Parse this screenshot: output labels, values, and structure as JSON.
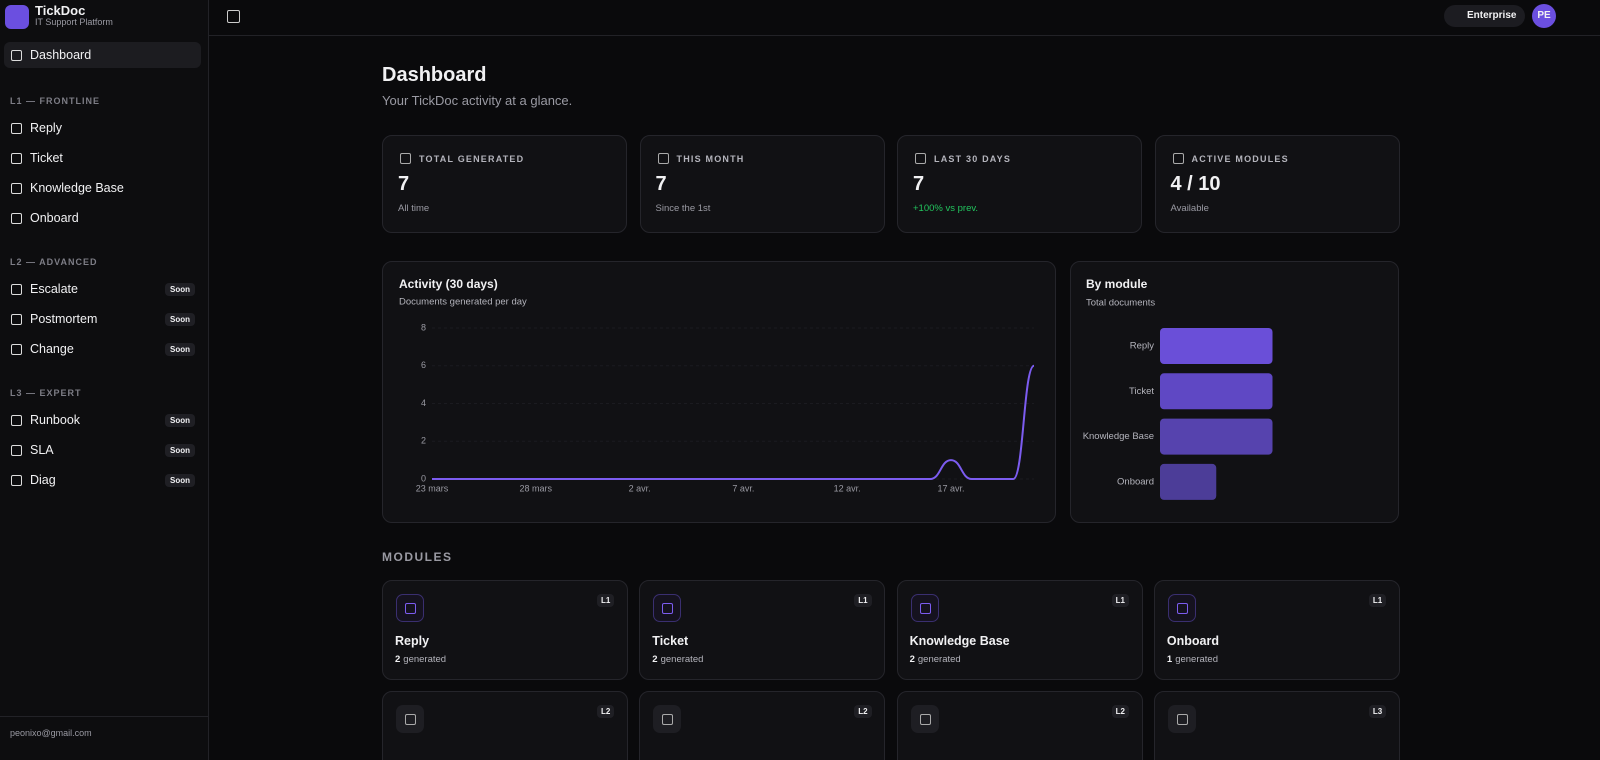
{
  "brand": {
    "name": "TickDoc",
    "tagline": "IT Support Platform"
  },
  "sidebar": {
    "home": "Dashboard",
    "sections": [
      {
        "title": "L1 — FRONTLINE",
        "items": [
          {
            "label": "Reply"
          },
          {
            "label": "Ticket"
          },
          {
            "label": "Knowledge Base"
          },
          {
            "label": "Onboard"
          }
        ]
      },
      {
        "title": "L2 — ADVANCED",
        "items": [
          {
            "label": "Escalate",
            "badge": "Soon"
          },
          {
            "label": "Postmortem",
            "badge": "Soon"
          },
          {
            "label": "Change",
            "badge": "Soon"
          }
        ]
      },
      {
        "title": "L3 — EXPERT",
        "items": [
          {
            "label": "Runbook",
            "badge": "Soon"
          },
          {
            "label": "SLA",
            "badge": "Soon"
          },
          {
            "label": "Diag",
            "badge": "Soon"
          }
        ]
      }
    ],
    "user_email": "peonixo@gmail.com"
  },
  "topbar": {
    "plan": "Enterprise",
    "avatar": "PE"
  },
  "header": {
    "title": "Dashboard",
    "subtitle": "Your TickDoc activity at a glance."
  },
  "stats": [
    {
      "label": "TOTAL GENERATED",
      "value": 7,
      "note": "All time"
    },
    {
      "label": "THIS MONTH",
      "value": 7,
      "note": "Since the 1st"
    },
    {
      "label": "LAST 30 DAYS",
      "value": 7,
      "note": "+100% vs prev.",
      "note_color": "#22c55e"
    },
    {
      "label": "ACTIVE MODULES",
      "value": "4 / 10",
      "note": "Available"
    }
  ],
  "chart_data": [
    {
      "type": "line",
      "title": "Activity (30 days)",
      "subtitle": "Documents generated per day",
      "categories": [
        "23 mars",
        null,
        null,
        null,
        null,
        "28 mars",
        null,
        null,
        null,
        null,
        "2 avr.",
        null,
        null,
        null,
        null,
        "7 avr.",
        null,
        null,
        null,
        null,
        "12 avr.",
        null,
        null,
        null,
        null,
        "17 avr.",
        null,
        null,
        null,
        null
      ],
      "series": [
        {
          "name": "Documents",
          "color": "#7c5cf0",
          "values": [
            0,
            0,
            0,
            0,
            0,
            0,
            0,
            0,
            0,
            0,
            0,
            0,
            0,
            0,
            0,
            0,
            0,
            0,
            0,
            0,
            0,
            0,
            0,
            0,
            0,
            1,
            0,
            0,
            0,
            6
          ]
        }
      ],
      "ylim": [
        0,
        8
      ],
      "yticks": [
        0,
        2,
        4,
        6,
        8
      ],
      "grid": true
    },
    {
      "type": "bar",
      "orientation": "horizontal",
      "title": "By module",
      "subtitle": "Total documents",
      "categories": [
        "Reply",
        "Ticket",
        "Knowledge Base",
        "Onboard"
      ],
      "values": [
        2,
        2,
        2,
        1
      ],
      "colors": [
        "#6a4fd8",
        "#5f48c4",
        "#5643ae",
        "#4c3d98"
      ],
      "xlim": [
        0,
        4
      ]
    }
  ],
  "modules": {
    "title": "MODULES",
    "cards": [
      {
        "name": "Reply",
        "level": "L1",
        "count": 2,
        "unit": "generated"
      },
      {
        "name": "Ticket",
        "level": "L1",
        "count": 2,
        "unit": "generated"
      },
      {
        "name": "Knowledge Base",
        "level": "L1",
        "count": 2,
        "unit": "generated"
      },
      {
        "name": "Onboard",
        "level": "L1",
        "count": 1,
        "unit": "generated"
      },
      {
        "level": "L2"
      },
      {
        "level": "L2"
      },
      {
        "level": "L2"
      },
      {
        "level": "L3"
      }
    ]
  }
}
